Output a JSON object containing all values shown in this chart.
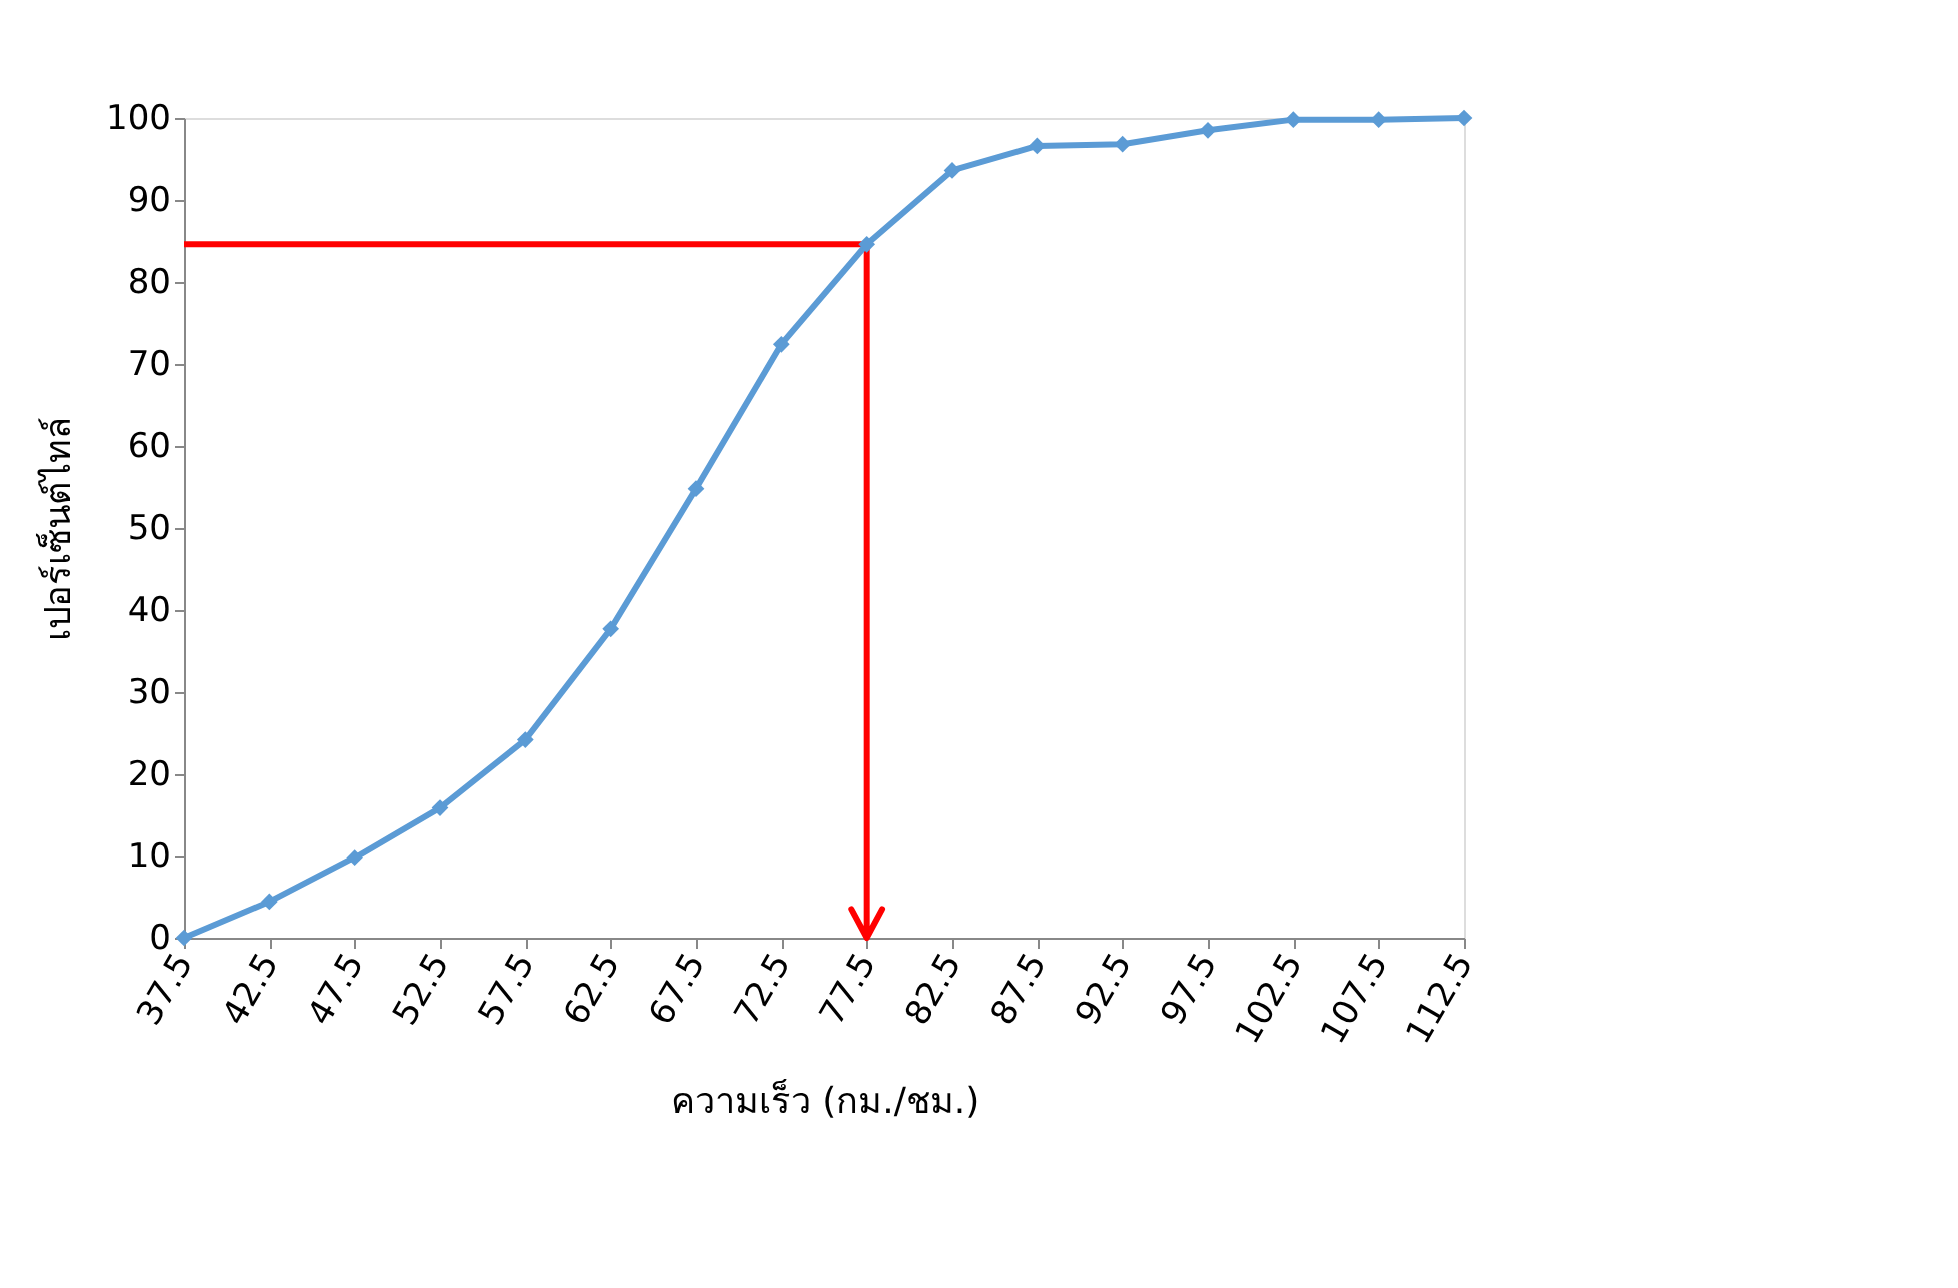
{
  "chart_data": {
    "type": "line",
    "xlabel": "ความเร็ว (กม./ชม.)",
    "ylabel": "เปอร์เซ็นต์ไทล์",
    "categories": [
      "37.5",
      "42.5",
      "47.5",
      "52.5",
      "57.5",
      "62.5",
      "67.5",
      "72.5",
      "77.5",
      "82.5",
      "87.5",
      "92.5",
      "97.5",
      "102.5",
      "107.5",
      "112.5"
    ],
    "series": [
      {
        "color": "#5b9bd5",
        "values": [
          0,
          4.4,
          9.8,
          15.9,
          24.2,
          37.7,
          54.8,
          72.4,
          84.6,
          93.6,
          96.6,
          96.8,
          98.5,
          99.8,
          99.8,
          100
        ]
      }
    ],
    "ylim": [
      0,
      100
    ],
    "yticks": [
      0,
      10,
      20,
      30,
      40,
      50,
      60,
      70,
      80,
      90,
      100
    ],
    "ref_lines": [
      {
        "axis": "y",
        "value": 84.6,
        "color": "#ff0000"
      },
      {
        "axis": "x",
        "value": "77.5",
        "color": "#ff0000"
      }
    ],
    "marker": "diamond",
    "line_style": "solid",
    "grid": false
  }
}
